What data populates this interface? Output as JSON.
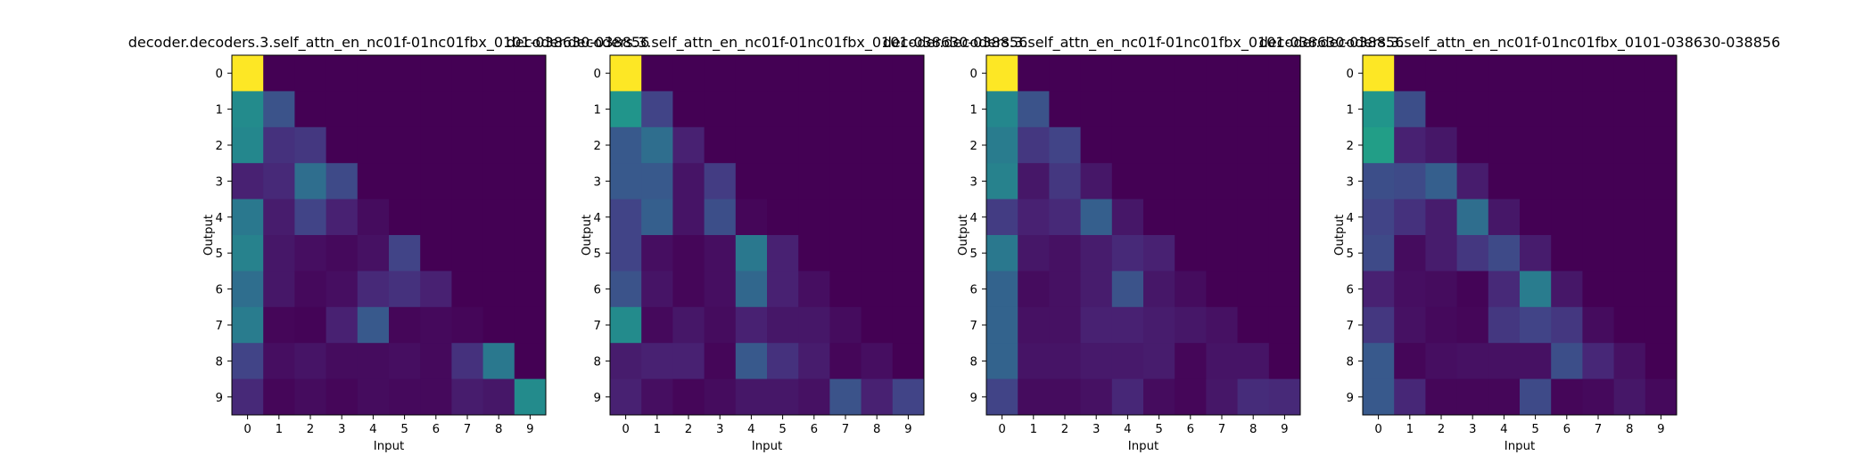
{
  "figure": {
    "background": "#ffffff",
    "colormap": "viridis",
    "cell_value_range": [
      0,
      1
    ]
  },
  "chart_data": [
    {
      "type": "heatmap",
      "title": "decoder.decoders.3.self_attn_en_nc01f-01nc01fbx_0101-038630-038856",
      "xlabel": "Input",
      "ylabel": "Output",
      "x_ticks": [
        "0",
        "1",
        "2",
        "3",
        "4",
        "5",
        "6",
        "7",
        "8",
        "9"
      ],
      "y_ticks": [
        "0",
        "1",
        "2",
        "3",
        "4",
        "5",
        "6",
        "7",
        "8",
        "9"
      ],
      "values": [
        [
          1.0,
          0,
          0,
          0,
          0,
          0,
          0,
          0,
          0,
          0
        ],
        [
          0.6,
          0.32,
          0,
          0,
          0,
          0,
          0,
          0,
          0,
          0
        ],
        [
          0.58,
          0.18,
          0.2,
          0,
          0,
          0,
          0,
          0,
          0,
          0
        ],
        [
          0.12,
          0.15,
          0.45,
          0.28,
          0,
          0,
          0,
          0,
          0,
          0
        ],
        [
          0.5,
          0.1,
          0.25,
          0.12,
          0.04,
          0,
          0,
          0,
          0,
          0
        ],
        [
          0.55,
          0.08,
          0.05,
          0.03,
          0.06,
          0.25,
          0,
          0,
          0,
          0
        ],
        [
          0.45,
          0.08,
          0.03,
          0.05,
          0.15,
          0.18,
          0.12,
          0,
          0,
          0
        ],
        [
          0.52,
          0.02,
          0.01,
          0.12,
          0.35,
          0.02,
          0.03,
          0.02,
          0,
          0
        ],
        [
          0.25,
          0.05,
          0.07,
          0.04,
          0.04,
          0.05,
          0.03,
          0.18,
          0.5,
          0
        ],
        [
          0.15,
          0.02,
          0.04,
          0.02,
          0.04,
          0.03,
          0.03,
          0.1,
          0.08,
          0.6
        ]
      ]
    },
    {
      "type": "heatmap",
      "title": "decoder.decoders.3.self_attn_en_nc01f-01nc01fbx_0101-038630-038856",
      "xlabel": "Input",
      "ylabel": "Output",
      "x_ticks": [
        "0",
        "1",
        "2",
        "3",
        "4",
        "5",
        "6",
        "7",
        "8",
        "9"
      ],
      "y_ticks": [
        "0",
        "1",
        "2",
        "3",
        "4",
        "5",
        "6",
        "7",
        "8",
        "9"
      ],
      "values": [
        [
          1.0,
          0,
          0,
          0,
          0,
          0,
          0,
          0,
          0,
          0
        ],
        [
          0.65,
          0.25,
          0,
          0,
          0,
          0,
          0,
          0,
          0,
          0
        ],
        [
          0.35,
          0.45,
          0.12,
          0,
          0,
          0,
          0,
          0,
          0,
          0
        ],
        [
          0.35,
          0.35,
          0.07,
          0.22,
          0,
          0,
          0,
          0,
          0,
          0
        ],
        [
          0.25,
          0.38,
          0.07,
          0.3,
          0.02,
          0,
          0,
          0,
          0,
          0
        ],
        [
          0.25,
          0.05,
          0.02,
          0.05,
          0.5,
          0.12,
          0,
          0,
          0,
          0
        ],
        [
          0.32,
          0.07,
          0.02,
          0.05,
          0.42,
          0.12,
          0.05,
          0,
          0,
          0
        ],
        [
          0.6,
          0.03,
          0.08,
          0.04,
          0.12,
          0.08,
          0.08,
          0.04,
          0,
          0
        ],
        [
          0.1,
          0.12,
          0.12,
          0.02,
          0.35,
          0.18,
          0.1,
          0.02,
          0.05,
          0
        ],
        [
          0.12,
          0.05,
          0.02,
          0.04,
          0.08,
          0.08,
          0.06,
          0.32,
          0.12,
          0.25
        ]
      ]
    },
    {
      "type": "heatmap",
      "title": "decoder.decoders.3.self_attn_en_nc01f-01nc01fbx_0101-038630-038856",
      "xlabel": "Input",
      "ylabel": "Output",
      "x_ticks": [
        "0",
        "1",
        "2",
        "3",
        "4",
        "5",
        "6",
        "7",
        "8",
        "9"
      ],
      "y_ticks": [
        "0",
        "1",
        "2",
        "3",
        "4",
        "5",
        "6",
        "7",
        "8",
        "9"
      ],
      "values": [
        [
          1.0,
          0,
          0,
          0,
          0,
          0,
          0,
          0,
          0,
          0
        ],
        [
          0.58,
          0.32,
          0,
          0,
          0,
          0,
          0,
          0,
          0,
          0
        ],
        [
          0.52,
          0.2,
          0.25,
          0,
          0,
          0,
          0,
          0,
          0,
          0
        ],
        [
          0.55,
          0.08,
          0.2,
          0.08,
          0,
          0,
          0,
          0,
          0,
          0
        ],
        [
          0.22,
          0.12,
          0.15,
          0.38,
          0.08,
          0,
          0,
          0,
          0,
          0
        ],
        [
          0.5,
          0.08,
          0.06,
          0.1,
          0.15,
          0.12,
          0,
          0,
          0,
          0
        ],
        [
          0.4,
          0.04,
          0.06,
          0.1,
          0.32,
          0.08,
          0.04,
          0,
          0,
          0
        ],
        [
          0.4,
          0.06,
          0.06,
          0.12,
          0.12,
          0.1,
          0.08,
          0.06,
          0,
          0
        ],
        [
          0.4,
          0.07,
          0.07,
          0.09,
          0.09,
          0.1,
          0.02,
          0.07,
          0.07,
          0
        ],
        [
          0.25,
          0.04,
          0.04,
          0.06,
          0.14,
          0.04,
          0.02,
          0.08,
          0.16,
          0.15
        ]
      ]
    },
    {
      "type": "heatmap",
      "title": "decoder.decoders.3.self_attn_en_nc01f-01nc01fbx_0101-038630-038856",
      "xlabel": "Input",
      "ylabel": "Output",
      "x_ticks": [
        "0",
        "1",
        "2",
        "3",
        "4",
        "5",
        "6",
        "7",
        "8",
        "9"
      ],
      "y_ticks": [
        "0",
        "1",
        "2",
        "3",
        "4",
        "5",
        "6",
        "7",
        "8",
        "9"
      ],
      "values": [
        [
          1.0,
          0,
          0,
          0,
          0,
          0,
          0,
          0,
          0,
          0
        ],
        [
          0.65,
          0.3,
          0,
          0,
          0,
          0,
          0,
          0,
          0,
          0
        ],
        [
          0.7,
          0.12,
          0.08,
          0,
          0,
          0,
          0,
          0,
          0,
          0
        ],
        [
          0.3,
          0.28,
          0.38,
          0.1,
          0,
          0,
          0,
          0,
          0,
          0
        ],
        [
          0.25,
          0.18,
          0.1,
          0.45,
          0.08,
          0,
          0,
          0,
          0,
          0
        ],
        [
          0.28,
          0.04,
          0.1,
          0.2,
          0.28,
          0.1,
          0,
          0,
          0,
          0
        ],
        [
          0.12,
          0.05,
          0.04,
          0.01,
          0.15,
          0.52,
          0.08,
          0,
          0,
          0
        ],
        [
          0.2,
          0.06,
          0.03,
          0.02,
          0.2,
          0.25,
          0.2,
          0.04,
          0,
          0
        ],
        [
          0.35,
          0.02,
          0.05,
          0.06,
          0.06,
          0.06,
          0.3,
          0.14,
          0.06,
          0
        ],
        [
          0.35,
          0.14,
          0.02,
          0.02,
          0.02,
          0.28,
          0.02,
          0.03,
          0.08,
          0.03
        ]
      ]
    }
  ]
}
